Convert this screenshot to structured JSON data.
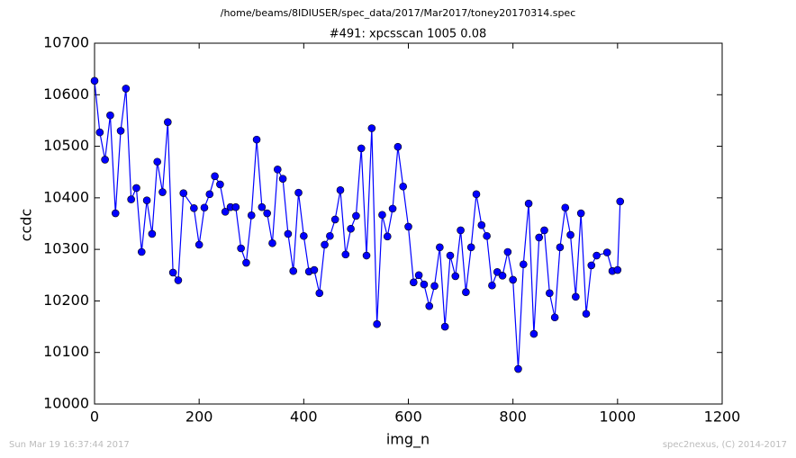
{
  "chart_data": {
    "type": "line",
    "suptitle": "/home/beams/8IDIUSER/spec_data/2017/Mar2017/toney20170314.spec",
    "title": "#491: xpcsscan 1005 0.08",
    "xlabel": "img_n",
    "ylabel": "ccdc",
    "timestamp": "Sun Mar 19 16:37:44 2017",
    "credit": "spec2nexus, (C) 2014-2017",
    "xlim": [
      0,
      1200
    ],
    "xticks": [
      0,
      200,
      400,
      600,
      800,
      1000,
      1200
    ],
    "ylim": [
      10000,
      10700
    ],
    "yticks": [
      10000,
      10100,
      10200,
      10300,
      10400,
      10500,
      10600,
      10700
    ],
    "grid": false,
    "series": [
      {
        "color": "#0000ff",
        "x": [
          0,
          10,
          20,
          30,
          40,
          50,
          60,
          70,
          80,
          90,
          100,
          110,
          120,
          130,
          140,
          150,
          160,
          170,
          190,
          200,
          210,
          220,
          230,
          240,
          250,
          260,
          270,
          280,
          290,
          300,
          310,
          320,
          330,
          340,
          350,
          360,
          370,
          380,
          390,
          400,
          410,
          420,
          430,
          440,
          450,
          460,
          470,
          480,
          490,
          500,
          510,
          520,
          530,
          540,
          550,
          560,
          570,
          580,
          590,
          600,
          610,
          620,
          630,
          640,
          650,
          660,
          670,
          680,
          690,
          700,
          710,
          720,
          730,
          740,
          750,
          760,
          770,
          780,
          790,
          800,
          810,
          820,
          830,
          840,
          850,
          860,
          870,
          880,
          890,
          900,
          910,
          920,
          930,
          940,
          950,
          960,
          980,
          990,
          1000,
          1005
        ],
        "values": [
          10627,
          10527,
          10474,
          10560,
          10370,
          10530,
          10612,
          10397,
          10419,
          10295,
          10395,
          10330,
          10470,
          10411,
          10547,
          10255,
          10240,
          10409,
          10380,
          10309,
          10381,
          10407,
          10442,
          10426,
          10373,
          10382,
          10382,
          10302,
          10274,
          10366,
          10513,
          10382,
          10370,
          10312,
          10455,
          10437,
          10330,
          10258,
          10410,
          10326,
          10257,
          10260,
          10215,
          10309,
          10326,
          10358,
          10415,
          10290,
          10340,
          10365,
          10496,
          10288,
          10535,
          10155,
          10367,
          10325,
          10379,
          10499,
          10422,
          10344,
          10236,
          10250,
          10232,
          10190,
          10229,
          10304,
          10150,
          10288,
          10248,
          10337,
          10217,
          10304,
          10407,
          10347,
          10326,
          10230,
          10256,
          10249,
          10295,
          10241,
          10068,
          10271,
          10389,
          10136,
          10323,
          10337,
          10215,
          10168,
          10304,
          10381,
          10328,
          10208,
          10370,
          10175,
          10269,
          10288,
          10294,
          10258,
          10260,
          10393
        ]
      }
    ]
  }
}
